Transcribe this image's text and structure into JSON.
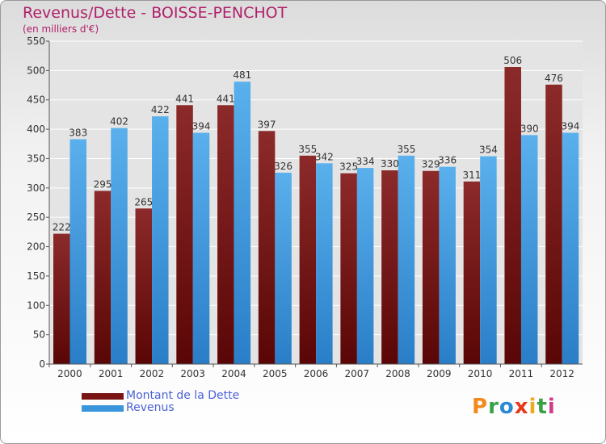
{
  "title": "Revenus/Dette - BOISSE-PENCHOT",
  "subtitle": "(en milliers d'€)",
  "colors": {
    "debt": "#7a1414",
    "revenue": "#3a96dc",
    "title": "#b0206a",
    "legend_text": "#4a62d8"
  },
  "legend": [
    {
      "label": "Montant de la Dette"
    },
    {
      "label": "Revenus"
    }
  ],
  "logo": {
    "letters": [
      "P",
      "r",
      "o",
      "x",
      "i",
      "t",
      "i"
    ],
    "colors": [
      "#f28a1e",
      "#3aa046",
      "#2a8ad6",
      "#e8381c",
      "#f2a81e",
      "#3aa046",
      "#d23a8a"
    ]
  },
  "chart_data": {
    "type": "bar",
    "title": "Revenus/Dette - BOISSE-PENCHOT",
    "subtitle": "(en milliers d'€)",
    "categories": [
      "2000",
      "2001",
      "2002",
      "2003",
      "2004",
      "2005",
      "2006",
      "2007",
      "2008",
      "2009",
      "2010",
      "2011",
      "2012"
    ],
    "series": [
      {
        "name": "Montant de la Dette",
        "values": [
          222,
          295,
          265,
          441,
          441,
          397,
          355,
          325,
          330,
          329,
          311,
          506,
          476
        ]
      },
      {
        "name": "Revenus",
        "values": [
          383,
          402,
          422,
          394,
          481,
          326,
          342,
          334,
          355,
          336,
          354,
          390,
          394
        ]
      }
    ],
    "yticks": [
      "0",
      "50",
      "100",
      "150",
      "200",
      "250",
      "300",
      "350",
      "400",
      "450",
      "500",
      "550"
    ],
    "ylim": [
      0,
      550
    ],
    "grid": true,
    "legend_position": "bottom-left"
  }
}
